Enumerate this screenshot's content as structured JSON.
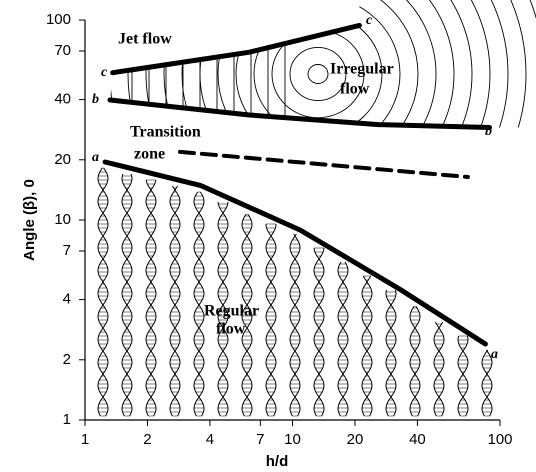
{
  "chart_data": {
    "type": "line",
    "x_label": "h/d",
    "y_label": "Angle (β), 0",
    "xlim": [
      1,
      100
    ],
    "ylim": [
      1,
      100
    ],
    "xscale": "log",
    "yscale": "log",
    "xticks": [
      1,
      2,
      4,
      7,
      10,
      20,
      40,
      100
    ],
    "yticks": [
      1,
      2,
      4,
      7,
      10,
      20,
      40,
      70,
      100
    ],
    "annotations": [
      "Jet flow",
      "Irregular",
      "flow",
      "Transition",
      "zone",
      "Regular",
      "flow"
    ],
    "series": [
      {
        "name": "a",
        "color": "#000000",
        "dashed": false,
        "x": [
          1.25,
          3.6,
          10.9,
          33,
          85
        ],
        "values": [
          19.5,
          14.9,
          8.9,
          4.5,
          2.4
        ]
      },
      {
        "name": "b",
        "color": "#000000",
        "dashed": false,
        "x": [
          1.32,
          6.2,
          26,
          89
        ],
        "values": [
          39.8,
          33.5,
          30,
          29
        ]
      },
      {
        "name": "c",
        "color": "#000000",
        "dashed": false,
        "x": [
          1.36,
          6.2,
          21
        ],
        "values": [
          54.5,
          69,
          94
        ]
      },
      {
        "color": "#000000",
        "dashed": true,
        "x": [
          2.87,
          70
        ],
        "values": [
          21.9,
          16.4
        ]
      }
    ]
  }
}
